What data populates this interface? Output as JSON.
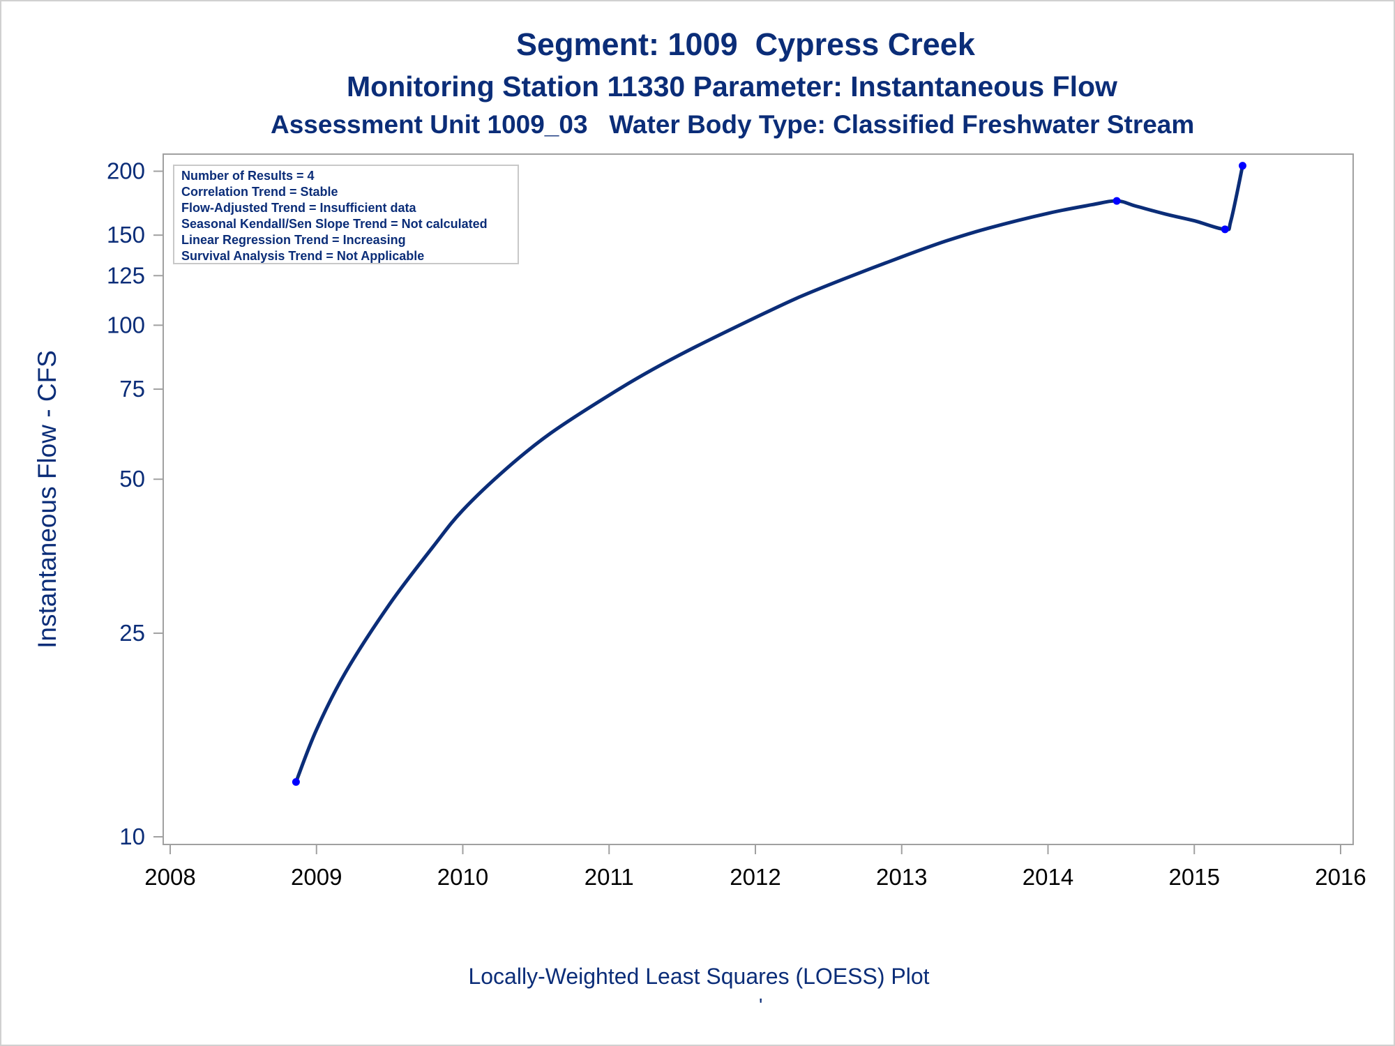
{
  "title": "Segment: 1009  Cypress Creek",
  "subtitle1": "Monitoring Station 11330 Parameter: Instantaneous Flow",
  "subtitle2": "Assessment Unit 1009_03   Water Body Type: Classified Freshwater Stream",
  "footnote": "Locally-Weighted Least Squares (LOESS) Plot",
  "footnote2": "'",
  "stats": [
    "Number of Results = 4",
    "Correlation Trend = Stable",
    "Flow-Adjusted Trend = Insufficient data",
    "Seasonal Kendall/Sen Slope Trend = Not calculated",
    "Linear Regression Trend = Increasing",
    "Survival Analysis Trend = Not Applicable"
  ],
  "colors": {
    "text": "#0b2d78",
    "line": "#0b2d78",
    "points": "#0000ff",
    "frame": "#a0a0a0"
  },
  "chart_data": {
    "type": "line",
    "title": "Segment: 1009  Cypress Creek",
    "xlabel": "",
    "ylabel": "Instantaneous Flow - CFS",
    "y_scale": "log",
    "xlim": [
      2008,
      2016
    ],
    "ylim": [
      10,
      210
    ],
    "x_ticks": [
      2008,
      2009,
      2010,
      2011,
      2012,
      2013,
      2014,
      2015,
      2016
    ],
    "y_ticks": [
      10,
      25,
      50,
      75,
      100,
      125,
      150,
      200
    ],
    "grid": false,
    "points": {
      "x": [
        2008.86,
        2014.47,
        2015.21,
        2015.33
      ],
      "y": [
        12.8,
        175,
        154,
        205
      ]
    },
    "loess_curve": {
      "x": [
        2008.86,
        2009.0,
        2009.2,
        2009.5,
        2009.8,
        2010.0,
        2010.3,
        2010.6,
        2011.0,
        2011.3,
        2011.6,
        2012.0,
        2012.3,
        2012.6,
        2013.0,
        2013.3,
        2013.6,
        2014.0,
        2014.3,
        2014.47,
        2014.6,
        2014.8,
        2015.0,
        2015.21,
        2015.25,
        2015.33
      ],
      "y": [
        12.8,
        16.2,
        21.0,
        28.5,
        37.0,
        43.5,
        52.5,
        61.5,
        73.0,
        82.0,
        91.0,
        103.5,
        113.5,
        123.0,
        136.0,
        146.0,
        155.0,
        165.5,
        172.0,
        175.0,
        171.0,
        165.0,
        160.0,
        154.0,
        160.0,
        205.0
      ]
    }
  }
}
